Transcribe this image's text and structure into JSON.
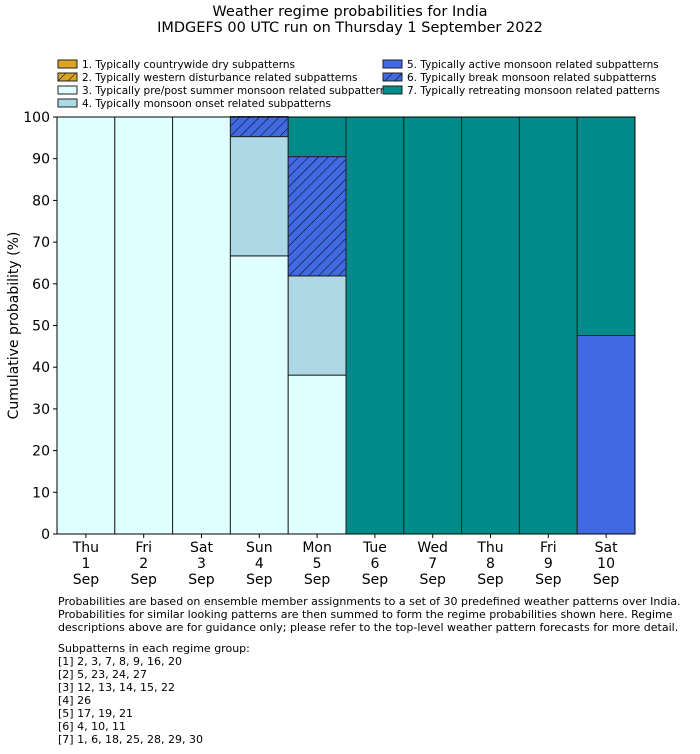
{
  "chart_data": {
    "type": "bar",
    "stacked": true,
    "title": "Weather regime probabilities for India",
    "subtitle": "IMDGEFS 00 UTC run on Thursday 1 September 2022",
    "ylabel": "Cumulative probability (%)",
    "xlabel": "",
    "ylim": [
      0,
      100
    ],
    "yticks": [
      0,
      10,
      20,
      30,
      40,
      50,
      60,
      70,
      80,
      90,
      100
    ],
    "categories": [
      [
        "Thu",
        "1",
        "Sep"
      ],
      [
        "Fri",
        "2",
        "Sep"
      ],
      [
        "Sat",
        "3",
        "Sep"
      ],
      [
        "Sun",
        "4",
        "Sep"
      ],
      [
        "Mon",
        "5",
        "Sep"
      ],
      [
        "Tue",
        "6",
        "Sep"
      ],
      [
        "Wed",
        "7",
        "Sep"
      ],
      [
        "Thu",
        "8",
        "Sep"
      ],
      [
        "Fri",
        "9",
        "Sep"
      ],
      [
        "Sat",
        "10",
        "Sep"
      ]
    ],
    "legend_position": "top",
    "series": [
      {
        "name": "1. Typically countrywide dry subpatterns",
        "color": "#daa520",
        "hatch": false,
        "values": [
          0,
          0,
          0,
          0,
          0,
          0,
          0,
          0,
          0,
          0
        ]
      },
      {
        "name": "2. Typically western disturbance related subpatterns",
        "color": "#daa520",
        "hatch": true,
        "values": [
          0,
          0,
          0,
          0,
          0,
          0,
          0,
          0,
          0,
          0
        ]
      },
      {
        "name": "3. Typically pre/post summer monsoon related subpatterns",
        "color": "#e0ffff",
        "hatch": false,
        "values": [
          100,
          100,
          100,
          66.7,
          38.1,
          0,
          0,
          0,
          0,
          0
        ]
      },
      {
        "name": "4. Typically monsoon onset related subpatterns",
        "color": "#add8e6",
        "hatch": false,
        "values": [
          0,
          0,
          0,
          28.6,
          23.8,
          0,
          0,
          0,
          0,
          0
        ]
      },
      {
        "name": "5. Typically active monsoon related subpatterns",
        "color": "#4169e1",
        "hatch": false,
        "values": [
          0,
          0,
          0,
          0,
          0,
          0,
          0,
          0,
          0,
          47.6
        ]
      },
      {
        "name": "6. Typically break monsoon related subpatterns",
        "color": "#4169e1",
        "hatch": true,
        "values": [
          0,
          0,
          0,
          4.8,
          28.6,
          0,
          0,
          0,
          0,
          0
        ]
      },
      {
        "name": "7. Typically retreating monsoon related patterns",
        "color": "#008b8b",
        "hatch": false,
        "values": [
          0,
          0,
          0,
          0,
          9.5,
          100,
          100,
          100,
          100,
          52.4
        ]
      }
    ]
  },
  "notes": {
    "description": "Probabilities are based on ensemble member assignments to a set of 30 predefined weather patterns over India.\nProbabilities for similar looking patterns are then summed to form the regime probabilities shown here. Regime\ndescriptions above are for guidance only; please refer to the top-level weather pattern forecasts for more detail.",
    "groups_heading": "Subpatterns in each regime group:",
    "groups": [
      "[1] 2, 3, 7, 8, 9, 16, 20",
      "[2] 5, 23, 24, 27",
      "[3] 12, 13, 14, 15, 22",
      "[4] 26",
      "[5] 17, 19, 21",
      "[6] 4, 10, 11",
      "[7] 1, 6, 18, 25, 28, 29, 30"
    ]
  }
}
